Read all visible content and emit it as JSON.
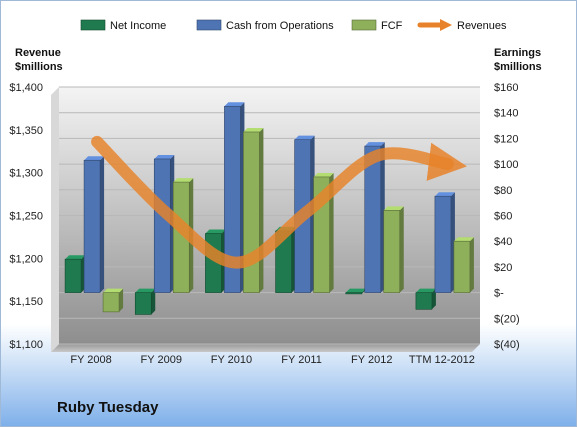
{
  "company": "Ruby Tuesday",
  "chart_data": {
    "type": "bar",
    "categories": [
      "FY 2008",
      "FY 2009",
      "FY 2010",
      "FY 2011",
      "FY 2012",
      "TTM 12-2012"
    ],
    "series": [
      {
        "name": "Net Income",
        "axis": "right",
        "color": "#1f7a4f",
        "values": [
          26,
          -17,
          46,
          48,
          -1,
          -13
        ]
      },
      {
        "name": "Cash from Operations",
        "axis": "right",
        "color": "#4f74b3",
        "values": [
          103,
          104,
          145,
          119,
          114,
          75
        ]
      },
      {
        "name": "FCF",
        "axis": "right",
        "color": "#8fb05a",
        "values": [
          -15,
          86,
          125,
          90,
          64,
          40
        ]
      },
      {
        "name": "Revenues",
        "axis": "left",
        "type": "line",
        "color": "#e8822a",
        "values": [
          1336,
          1252,
          1195,
          1255,
          1320,
          1310
        ]
      }
    ],
    "ylabel_left": "Revenue\n$millions",
    "ylabel_right": "Earnings\n$millions",
    "ylim_left": [
      1100,
      1400
    ],
    "ylim_right": [
      -40,
      160
    ],
    "left_ticks": [
      "$1,100",
      "$1,150",
      "$1,200",
      "$1,250",
      "$1,300",
      "$1,350",
      "$1,400"
    ],
    "right_ticks": [
      "$(40)",
      "$(20)",
      "$-",
      "$20",
      "$40",
      "$60",
      "$80",
      "$100",
      "$120",
      "$140",
      "$160"
    ],
    "legend_position": "top",
    "grid": true
  }
}
